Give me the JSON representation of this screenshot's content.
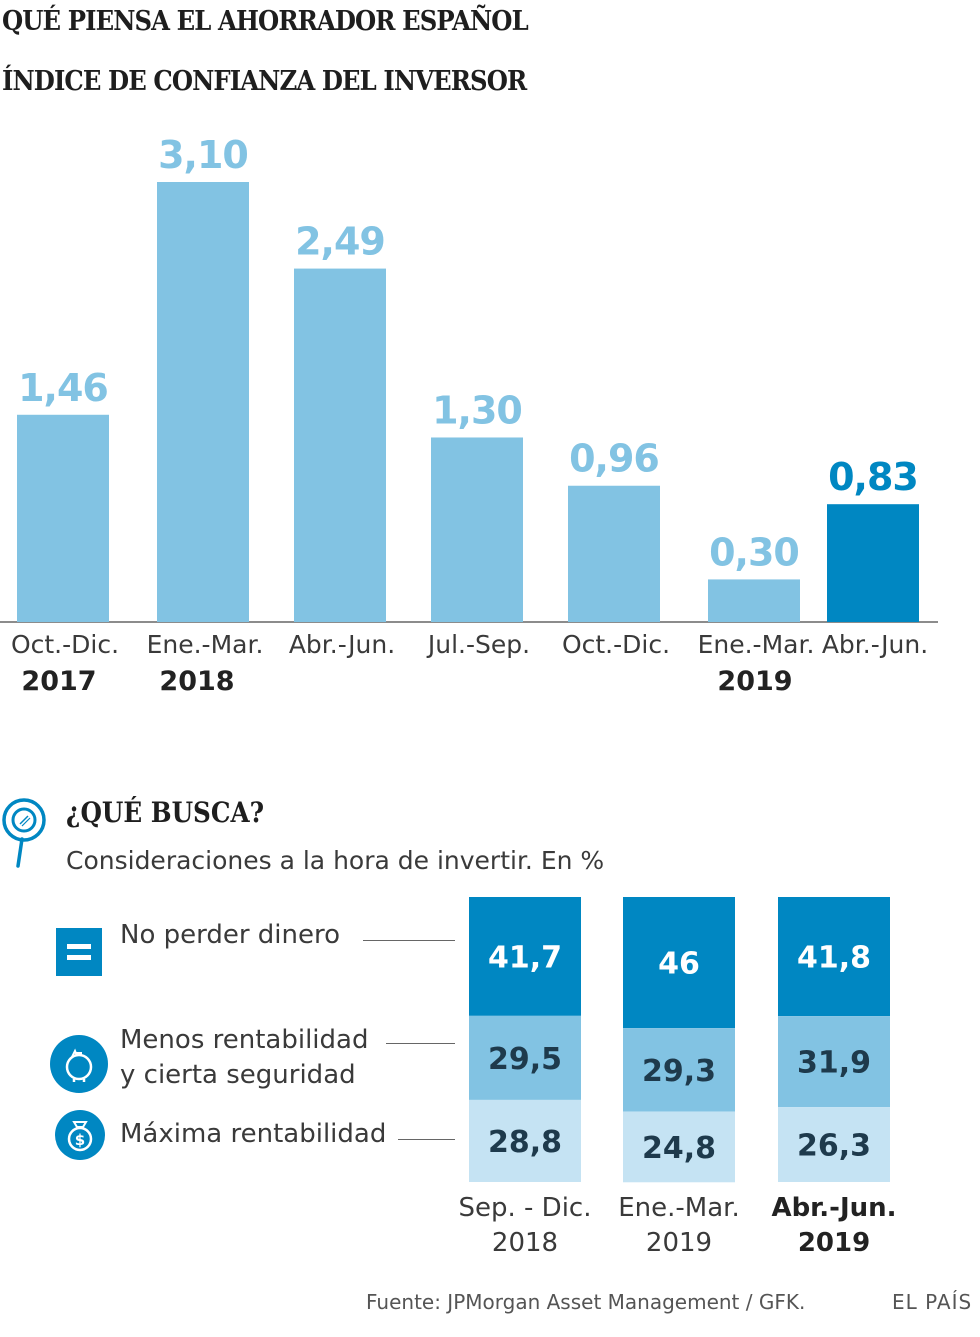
{
  "header": {
    "title": "QUÉ PIENSA EL AHORRADOR ESPAÑOL",
    "subtitle": "ÍNDICE DE CONFIANZA DEL INVERSOR"
  },
  "section2": {
    "title": "¿QUÉ BUSCA?",
    "subtitle": "Consideraciones a la hora de invertir. En %"
  },
  "footer": {
    "source": "Fuente: JPMorgan Asset Management / GFK.",
    "brand": "EL PAÍS"
  },
  "colors": {
    "light_bar": "#82c3e3",
    "highlight_bar": "#0087c2",
    "dark_segment": "#0087c2",
    "mid_segment": "#82c3e3",
    "pale_segment": "#c5e3f3",
    "dark_text": "#1e3a4c"
  },
  "chart_data": [
    {
      "type": "bar",
      "title": "ÍNDICE DE CONFIANZA DEL INVERSOR",
      "categories": [
        "Oct.-Dic.",
        "Ene.-Mar.",
        "Abr.-Jun.",
        "Jul.-Sep.",
        "Oct.-Dic.",
        "Ene.-Mar.",
        "Abr.-Jun."
      ],
      "category_years": [
        "2017",
        "2018",
        "",
        "",
        "",
        "2019",
        ""
      ],
      "values": [
        1.46,
        3.1,
        2.49,
        1.3,
        0.96,
        0.3,
        0.83
      ],
      "value_labels": [
        "1,46",
        "3,10",
        "2,49",
        "1,30",
        "0,96",
        "0,30",
        "0,83"
      ],
      "highlight_index": 6,
      "ylim": [
        0,
        3.1
      ],
      "grid": false
    },
    {
      "type": "bar",
      "stacked": true,
      "title": "¿QUÉ BUSCA?",
      "categories": [
        {
          "period": "Sep. - Dic.",
          "year": "2018",
          "bold": false
        },
        {
          "period": "Ene.-Mar.",
          "year": "2019",
          "bold": false
        },
        {
          "period": "Abr.-Jun.",
          "year": "2019",
          "bold": true
        }
      ],
      "series": [
        {
          "name": "No perder dinero",
          "icon": "equals-icon",
          "values": [
            41.7,
            46,
            41.8
          ],
          "labels": [
            "41,7",
            "46",
            "41,8"
          ]
        },
        {
          "name": "Menos rentabilidad y cierta seguridad",
          "name_lines": [
            "Menos rentabilidad",
            "y cierta seguridad"
          ],
          "icon": "piggy-bank-icon",
          "values": [
            29.5,
            29.3,
            31.9
          ],
          "labels": [
            "29,5",
            "29,3",
            "31,9"
          ]
        },
        {
          "name": "Máxima rentabilidad",
          "icon": "money-bag-icon",
          "values": [
            28.8,
            24.8,
            26.3
          ],
          "labels": [
            "28,8",
            "24,8",
            "26,3"
          ]
        }
      ],
      "ylim": [
        0,
        100
      ],
      "legend": "left"
    }
  ]
}
